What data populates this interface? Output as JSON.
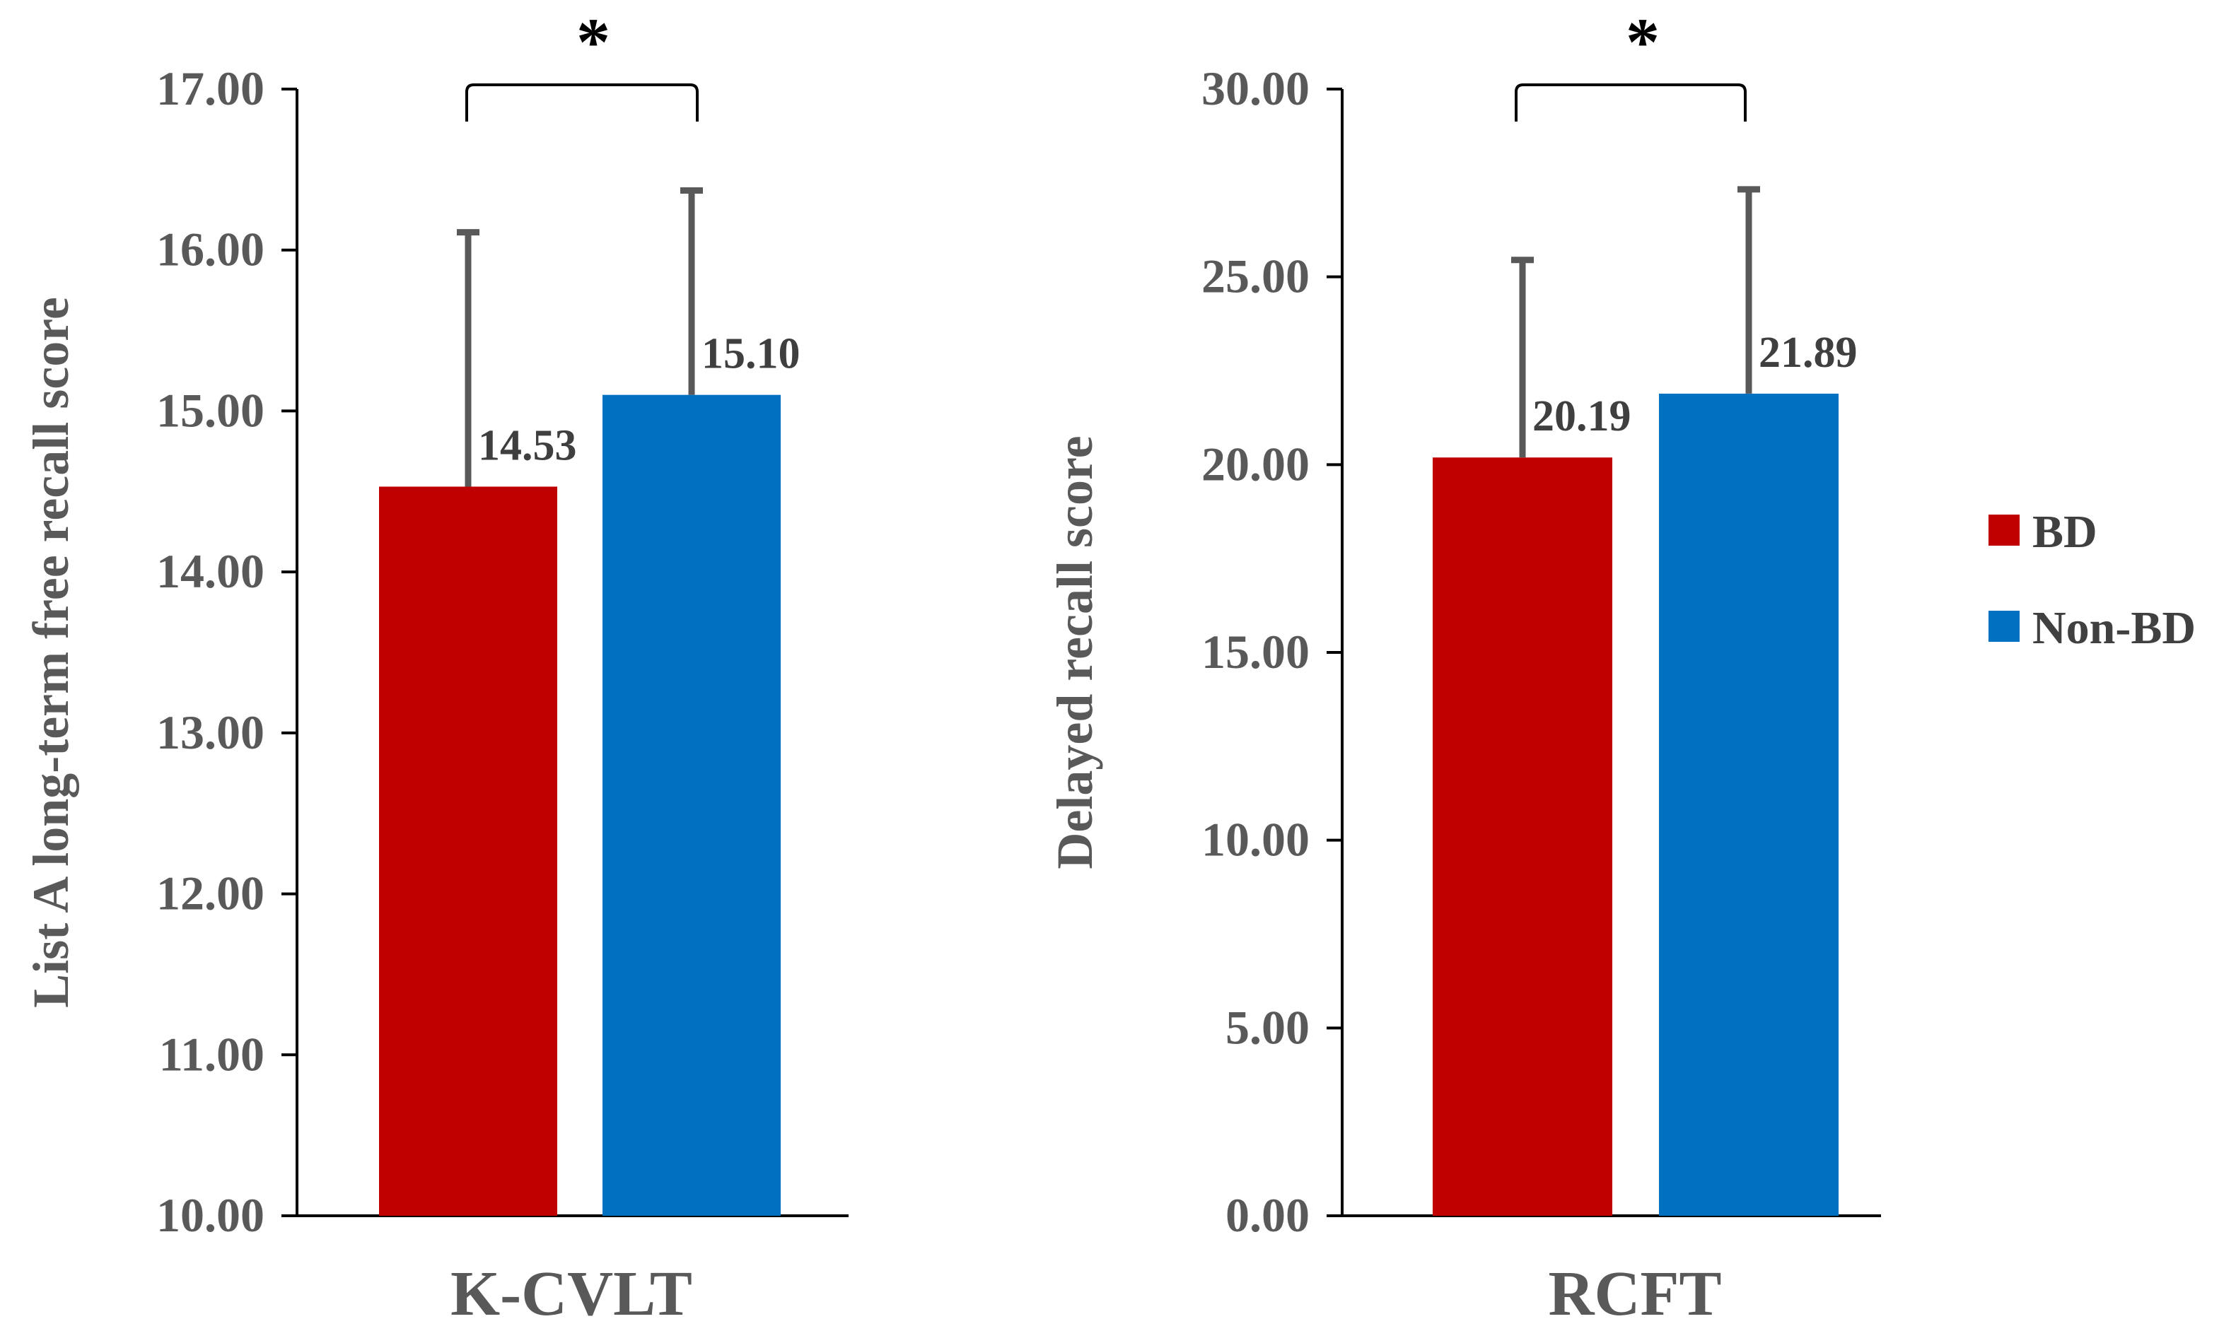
{
  "legend": {
    "items": [
      {
        "label": "BD",
        "color": "#C00000"
      },
      {
        "label": "Non-BD",
        "color": "#0070C0"
      }
    ]
  },
  "chart_data": [
    {
      "type": "bar",
      "ylabel": "List A  long-term free recall score",
      "categories": [
        "K-CVLT"
      ],
      "ylim": [
        10,
        17
      ],
      "yticks": [
        "10.00",
        "11.00",
        "12.00",
        "13.00",
        "14.00",
        "15.00",
        "16.00",
        "17.00"
      ],
      "series": [
        {
          "name": "BD",
          "values": [
            14.53
          ],
          "error": [
            1.58
          ],
          "label": "14.53",
          "color": "#C00000"
        },
        {
          "name": "Non-BD",
          "values": [
            15.1
          ],
          "error": [
            1.27
          ],
          "label": "15.10",
          "color": "#0070C0"
        }
      ],
      "significance": "*"
    },
    {
      "type": "bar",
      "ylabel": "Delayed recall score",
      "categories": [
        "RCFT"
      ],
      "ylim": [
        0,
        30
      ],
      "yticks": [
        "0.00",
        "5.00",
        "10.00",
        "15.00",
        "20.00",
        "25.00",
        "30.00"
      ],
      "series": [
        {
          "name": "BD",
          "values": [
            20.19
          ],
          "error": [
            5.26
          ],
          "label": "20.19",
          "color": "#C00000"
        },
        {
          "name": "Non-BD",
          "values": [
            21.89
          ],
          "error": [
            5.44
          ],
          "label": "21.89",
          "color": "#0070C0"
        }
      ],
      "significance": "*"
    }
  ]
}
